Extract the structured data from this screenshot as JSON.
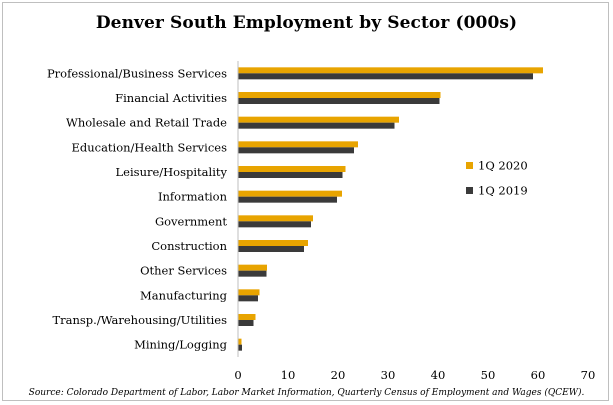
{
  "chart_data": {
    "type": "bar",
    "orientation": "horizontal",
    "title": "Denver South Employment by Sector (000s)",
    "categories": [
      "Professional/Business Services",
      "Financial Activities",
      "Wholesale and Retail Trade",
      "Education/Health Services",
      "Leisure/Hospitality",
      "Information",
      "Government",
      "Construction",
      "Other Services",
      "Manufacturing",
      "Transp./Warehousing/Utilities",
      "Mining/Logging"
    ],
    "series": [
      {
        "name": "1Q 2020",
        "color": "#e8a400",
        "values": [
          61.0,
          40.5,
          32.2,
          24.0,
          21.5,
          20.8,
          15.0,
          14.0,
          5.8,
          4.3,
          3.5,
          0.7
        ]
      },
      {
        "name": "1Q 2019",
        "color": "#3a3a3a",
        "values": [
          59.0,
          40.3,
          31.3,
          23.2,
          20.9,
          19.8,
          14.6,
          13.2,
          5.7,
          4.0,
          3.1,
          0.8
        ]
      }
    ],
    "xlim": [
      0,
      70
    ],
    "xticks": [
      "0",
      "10",
      "20",
      "30",
      "40",
      "50",
      "60",
      "70"
    ],
    "grid": false,
    "legend_position": "right"
  },
  "source_note": "Source: Colorado Department of Labor, Labor Market Information, Quarterly Census of Employment and Wages (QCEW)."
}
